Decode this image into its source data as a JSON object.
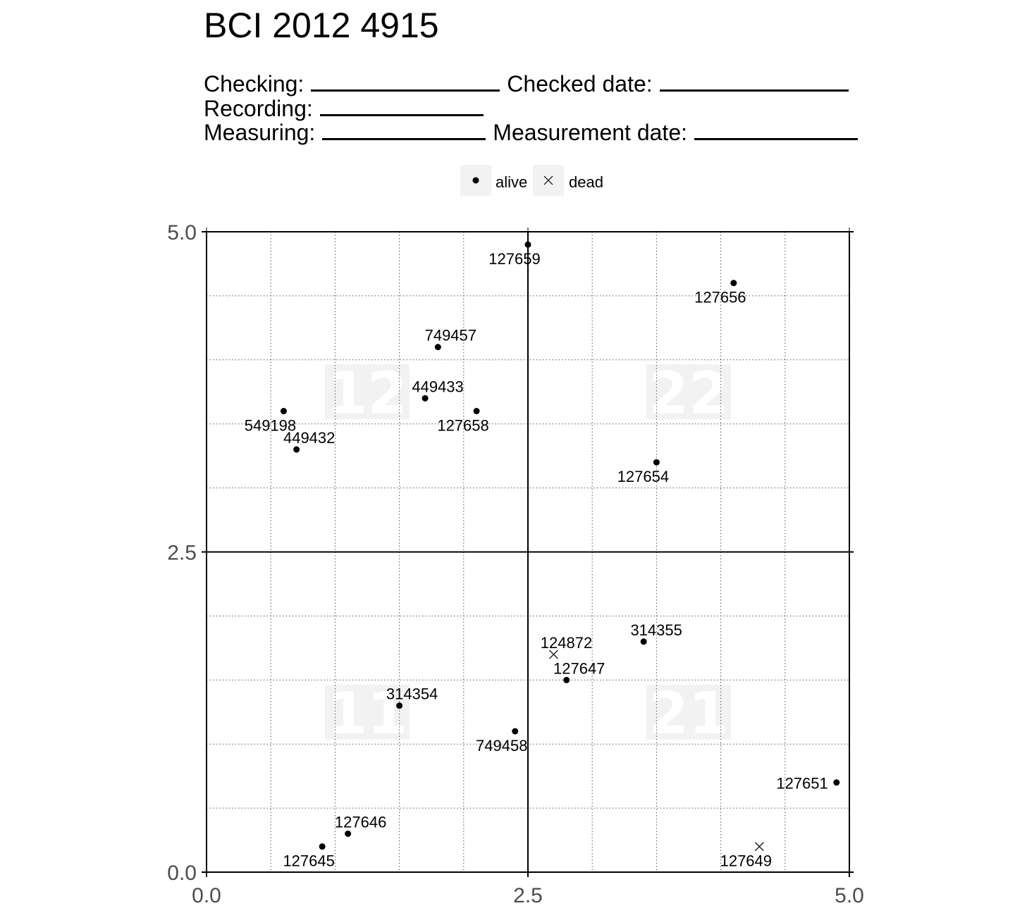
{
  "title": "BCI 2012 4915",
  "header": {
    "checking_label": "Checking:",
    "checked_date_label": "Checked date:",
    "recording_label": "Recording:",
    "measuring_label": "Measuring:",
    "measurement_date_label": "Measurement date:"
  },
  "chart_data": {
    "type": "scatter",
    "xlim": [
      0,
      5
    ],
    "ylim": [
      0,
      5
    ],
    "x_ticks": [
      "0.0",
      "2.5",
      "5.0"
    ],
    "y_ticks": [
      "0.0",
      "2.5",
      "5.0"
    ],
    "grid": true,
    "legend": {
      "position": "top",
      "entries": [
        {
          "name": "alive",
          "marker": "dot"
        },
        {
          "name": "dead",
          "marker": "x"
        }
      ]
    },
    "quadrants": [
      {
        "label": "12",
        "x": 1.25,
        "y": 3.75
      },
      {
        "label": "22",
        "x": 3.75,
        "y": 3.75
      },
      {
        "label": "11",
        "x": 1.25,
        "y": 1.25
      },
      {
        "label": "21",
        "x": 3.75,
        "y": 1.25
      }
    ],
    "points": [
      {
        "tag": "127659",
        "x": 2.5,
        "y": 4.9,
        "status": "alive",
        "label_pos": "below"
      },
      {
        "tag": "127656",
        "x": 4.1,
        "y": 4.6,
        "status": "alive",
        "label_pos": "below"
      },
      {
        "tag": "749457",
        "x": 1.8,
        "y": 4.1,
        "status": "alive",
        "label_pos": "above"
      },
      {
        "tag": "449433",
        "x": 1.7,
        "y": 3.7,
        "status": "alive",
        "label_pos": "above"
      },
      {
        "tag": "549198",
        "x": 0.6,
        "y": 3.6,
        "status": "alive",
        "label_pos": "below"
      },
      {
        "tag": "127658",
        "x": 2.1,
        "y": 3.6,
        "status": "alive",
        "label_pos": "below"
      },
      {
        "tag": "449432",
        "x": 0.7,
        "y": 3.3,
        "status": "alive",
        "label_pos": "above"
      },
      {
        "tag": "127654",
        "x": 3.5,
        "y": 3.2,
        "status": "alive",
        "label_pos": "below"
      },
      {
        "tag": "314355",
        "x": 3.4,
        "y": 1.8,
        "status": "alive",
        "label_pos": "above"
      },
      {
        "tag": "124872",
        "x": 2.7,
        "y": 1.7,
        "status": "dead",
        "label_pos": "above"
      },
      {
        "tag": "127647",
        "x": 2.8,
        "y": 1.5,
        "status": "alive",
        "label_pos": "above"
      },
      {
        "tag": "314354",
        "x": 1.5,
        "y": 1.3,
        "status": "alive",
        "label_pos": "above"
      },
      {
        "tag": "749458",
        "x": 2.4,
        "y": 1.1,
        "status": "alive",
        "label_pos": "below"
      },
      {
        "tag": "127651",
        "x": 4.9,
        "y": 0.7,
        "status": "alive",
        "label_pos": "left"
      },
      {
        "tag": "127646",
        "x": 1.1,
        "y": 0.3,
        "status": "alive",
        "label_pos": "above"
      },
      {
        "tag": "127645",
        "x": 0.9,
        "y": 0.2,
        "status": "alive",
        "label_pos": "below"
      },
      {
        "tag": "127649",
        "x": 4.3,
        "y": 0.2,
        "status": "dead",
        "label_pos": "below"
      }
    ]
  }
}
